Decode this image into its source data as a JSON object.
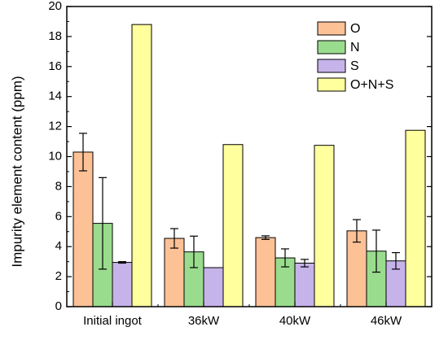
{
  "chart_data": {
    "type": "bar",
    "categories": [
      "Initial ingot",
      "36kW",
      "40kW",
      "46kW"
    ],
    "series": [
      {
        "name": "O",
        "color": "#FDC196",
        "values": [
          10.3,
          4.55,
          4.6,
          5.05
        ],
        "errors": [
          1.25,
          0.65,
          0.12,
          0.75
        ]
      },
      {
        "name": "N",
        "color": "#9ADC8E",
        "values": [
          5.55,
          3.65,
          3.25,
          3.7
        ],
        "errors": [
          3.05,
          1.05,
          0.6,
          1.4
        ]
      },
      {
        "name": "S",
        "color": "#C6B3EA",
        "values": [
          2.95,
          2.6,
          2.9,
          3.05
        ],
        "errors": [
          0.05,
          0.0,
          0.25,
          0.55
        ]
      },
      {
        "name": "O+N+S",
        "color": "#FFFF9E",
        "values": [
          18.8,
          10.8,
          10.75,
          11.75
        ],
        "errors": [
          0,
          0,
          0,
          0
        ]
      }
    ],
    "title": "",
    "xlabel": "",
    "ylabel": "Impurity element content (ppm)",
    "ylim": [
      0,
      20
    ],
    "yticks": [
      0,
      2,
      4,
      6,
      8,
      10,
      12,
      14,
      16,
      18,
      20
    ],
    "grid": false,
    "legend_position": "top-right"
  }
}
